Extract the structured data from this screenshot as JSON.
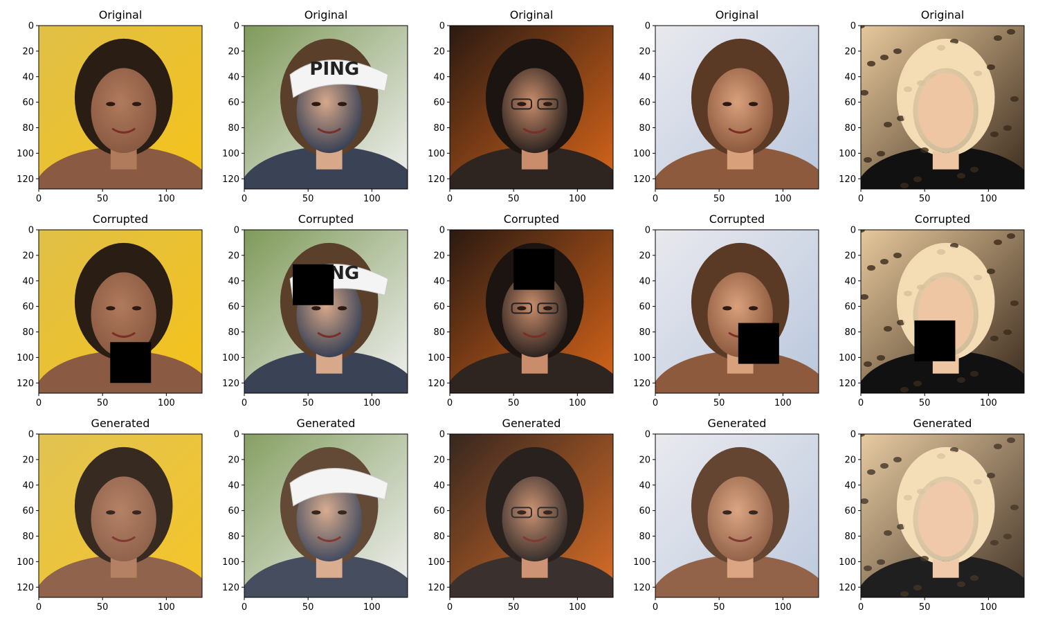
{
  "figure": {
    "rows": [
      {
        "title": "Original"
      },
      {
        "title": "Corrupted"
      },
      {
        "title": "Generated"
      }
    ],
    "axis": {
      "xticks": [
        0,
        50,
        100
      ],
      "yticks": [
        0,
        20,
        40,
        60,
        80,
        100,
        120
      ],
      "range": [
        0,
        128
      ]
    },
    "columns": [
      {
        "subject": "man-curly-hair-shirtless",
        "colors": {
          "bg": "#e0c048",
          "accent": "#f5c21a",
          "hair": "#2a1d14",
          "skin": "#b07a5c",
          "body": "#8a5a42"
        },
        "mask": {
          "x": 56,
          "y": 88,
          "size": 32
        }
      },
      {
        "subject": "man-white-visor",
        "colors": {
          "bg": "#7f9a5a",
          "accent": "#f1f1f1",
          "hair": "#5a3f2a",
          "skin": "#d7a88a",
          "body": "#3a4256"
        },
        "visor_text": "PING",
        "mask": {
          "x": 38,
          "y": 27,
          "size": 32
        }
      },
      {
        "subject": "man-glasses-dark-background",
        "colors": {
          "bg": "#2a1a12",
          "accent": "#d9661a",
          "hair": "#1c1410",
          "skin": "#c98d6c",
          "body": "#2e2420"
        },
        "mask": {
          "x": 50,
          "y": 15,
          "size": 32
        }
      },
      {
        "subject": "woman-brown-hair-smiling",
        "colors": {
          "bg": "#e9e9ee",
          "accent": "#b9c7dd",
          "hair": "#5b3a25",
          "skin": "#d9a07c",
          "body": "#8d5a3e"
        },
        "mask": {
          "x": 65,
          "y": 73,
          "size": 32
        }
      },
      {
        "subject": "woman-blonde-leopard-background",
        "colors": {
          "bg": "#e6c89c",
          "accent": "#3a2a1c",
          "hair": "#f3dcb4",
          "skin": "#efc6a4",
          "body": "#111111"
        },
        "mask": {
          "x": 42,
          "y": 71,
          "size": 32
        }
      }
    ]
  }
}
